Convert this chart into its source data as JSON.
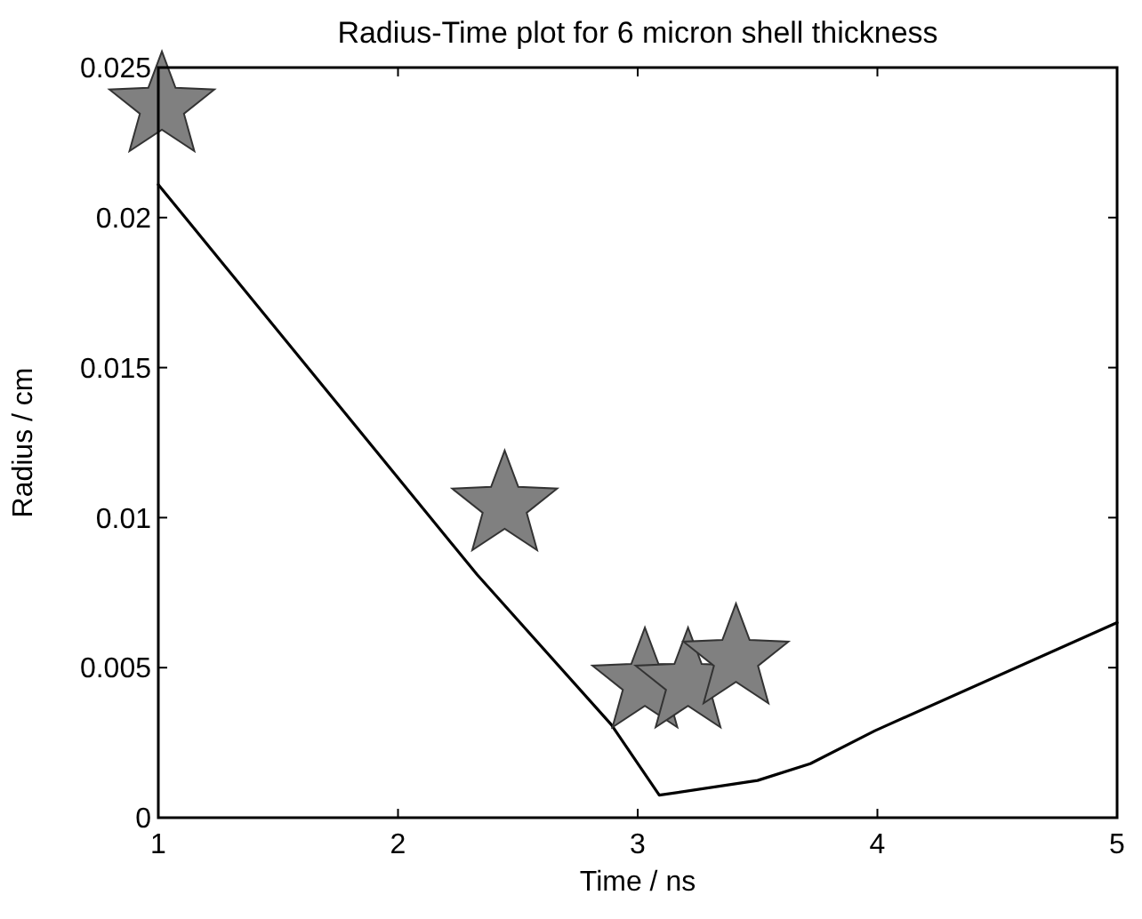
{
  "chart_data": {
    "type": "line",
    "title": "Radius-Time plot for 6 micron shell thickness",
    "xlabel": "Time / ns",
    "ylabel": "Radius / cm",
    "xlim": [
      1,
      5
    ],
    "xticks": [
      1,
      2,
      3,
      4,
      5
    ],
    "ylim": [
      0,
      0.025
    ],
    "yticks": [
      0,
      0.005,
      0.01,
      0.015,
      0.02,
      0.025
    ],
    "grid": false,
    "series": [
      {
        "color": "#000000",
        "marker": "none",
        "line_style": "solid",
        "x": [
          1,
          2.33,
          2.89,
          3.09,
          3.5,
          3.72,
          3.99,
          5
        ],
        "values": [
          0.0211,
          0.0081,
          0.0031,
          0.00075,
          0.00124,
          0.0018,
          0.0029,
          0.0065
        ]
      },
      {
        "type": "scatter",
        "color": "#808080",
        "marker": "star",
        "x": [
          1.015,
          2.445,
          3.03,
          3.21,
          3.41
        ],
        "values": [
          0.0237,
          0.0104,
          0.0045,
          0.0045,
          0.0053
        ]
      }
    ]
  }
}
